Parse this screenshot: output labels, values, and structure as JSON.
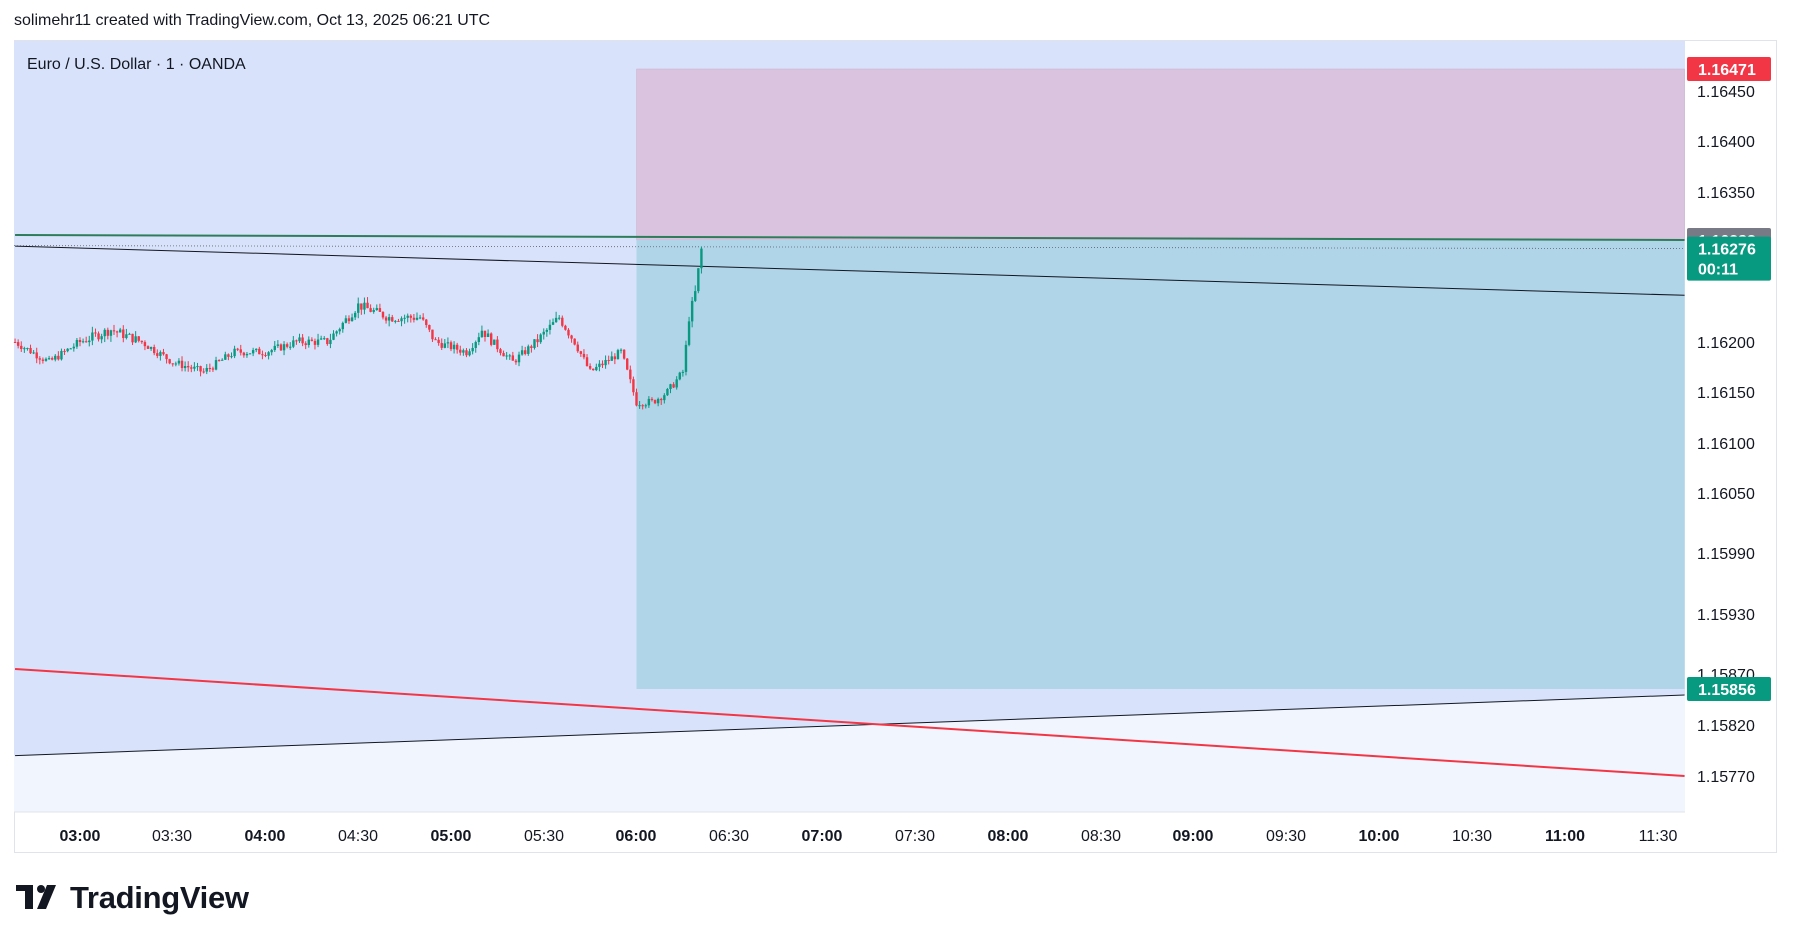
{
  "header": {
    "attribution": "solimehr11 created with TradingView.com, Oct 13, 2025 06:21 UTC"
  },
  "colors": {
    "background_zone": "#d8e3fb",
    "lower_zone": "#f1f5fd",
    "stop_zone": "#d9c3de",
    "target_zone": "#b0d4e8",
    "candle_up": "#089981",
    "candle_down": "#f23645",
    "red_line": "#f23645",
    "green_line": "#2e7d5a",
    "current_price_label": "#089981",
    "stop_label": "#f23645",
    "entry_label": "#787b86"
  },
  "chart_data": {
    "type": "candlestick",
    "title": "Euro / U.S. Dollar · 1 · OANDA",
    "symbol": "Euro / U.S. Dollar",
    "interval": "1",
    "exchange": "OANDA",
    "x_tick_labels": [
      "03:00",
      "03:30",
      "04:00",
      "04:30",
      "05:00",
      "05:30",
      "06:00",
      "06:30",
      "07:00",
      "07:30",
      "08:00",
      "08:30",
      "09:00",
      "09:30",
      "10:00",
      "10:30",
      "11:00",
      "11:30"
    ],
    "x_range": [
      "02:39",
      "11:39"
    ],
    "y_tick_labels": [
      "1.16450",
      "1.16400",
      "1.16350",
      "1.16200",
      "1.16150",
      "1.16100",
      "1.16050",
      "1.15990",
      "1.15930",
      "1.15870",
      "1.15820",
      "1.15770"
    ],
    "y_range": [
      1.1575,
      1.165
    ],
    "price_labels": [
      {
        "role": "stop",
        "value": "1.16471",
        "price": 1.16471
      },
      {
        "role": "entry",
        "value": "1.16283",
        "price": 1.16283
      },
      {
        "role": "current",
        "value": "1.16276",
        "countdown": "00:11",
        "price": 1.16276
      },
      {
        "role": "target",
        "value": "1.15856",
        "price": 1.15856
      }
    ],
    "position": {
      "type": "short",
      "start_time": "06:00",
      "end_time": "11:39",
      "entry": 1.16283,
      "stop": 1.16471,
      "target": 1.15856
    },
    "trend_lines": [
      {
        "name": "resistance",
        "color": "#2e7d5a",
        "from": [
          "02:39",
          1.1629
        ],
        "to": [
          "11:39",
          1.16283
        ]
      },
      {
        "name": "upper-channel",
        "color": "#131722",
        "from": [
          "02:39",
          1.16278
        ],
        "to": [
          "11:39",
          1.16238
        ]
      },
      {
        "name": "lower-channel",
        "color": "#131722",
        "from": [
          "02:39",
          1.1579
        ],
        "to": [
          "11:39",
          1.1585
        ]
      },
      {
        "name": "red-trend",
        "color": "#f23645",
        "from": [
          "02:39",
          1.15875
        ],
        "to": [
          "11:39",
          1.1577
        ]
      }
    ],
    "candles_anchor_path": [
      [
        "02:39",
        1.162
      ],
      [
        "02:50",
        1.1618
      ],
      [
        "03:00",
        1.162
      ],
      [
        "03:10",
        1.1621
      ],
      [
        "03:20",
        1.162
      ],
      [
        "03:30",
        1.1618
      ],
      [
        "03:40",
        1.1617
      ],
      [
        "03:50",
        1.1619
      ],
      [
        "04:00",
        1.1619
      ],
      [
        "04:10",
        1.162
      ],
      [
        "04:20",
        1.162
      ],
      [
        "04:30",
        1.1623
      ],
      [
        "04:40",
        1.1622
      ],
      [
        "04:50",
        1.1622
      ],
      [
        "04:55",
        1.162
      ],
      [
        "05:05",
        1.1619
      ],
      [
        "05:10",
        1.1621
      ],
      [
        "05:20",
        1.1618
      ],
      [
        "05:35",
        1.1622
      ],
      [
        "05:40",
        1.162
      ],
      [
        "05:45",
        1.1617
      ],
      [
        "05:55",
        1.1619
      ],
      [
        "06:00",
        1.1614
      ],
      [
        "06:05",
        1.1614
      ],
      [
        "06:10",
        1.1615
      ],
      [
        "06:15",
        1.1617
      ],
      [
        "06:17",
        1.1622
      ],
      [
        "06:19",
        1.1624
      ],
      [
        "06:21",
        1.16276
      ]
    ]
  },
  "branding": {
    "logo_text": "TradingView"
  }
}
